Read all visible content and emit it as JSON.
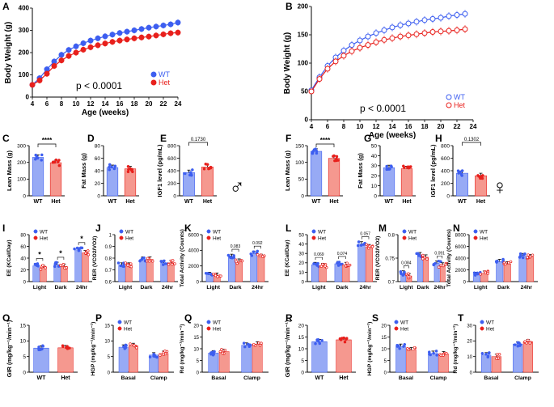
{
  "colors": {
    "wt_male": "#3d5ef0",
    "het_male": "#e8201c",
    "wt_female": "#3d5ef0",
    "het_female": "#e8201c",
    "bar_wt": "#97aaf5",
    "bar_het": "#f5988f"
  },
  "chart_data": [
    {
      "panel": "A",
      "type": "line",
      "ylabel": "Body Weight (g)",
      "xlabel": "Age (weeks)",
      "xlim": [
        4,
        24
      ],
      "ylim": [
        0,
        400
      ],
      "xticks": [
        4,
        6,
        8,
        10,
        12,
        14,
        16,
        18,
        20,
        22,
        24
      ],
      "yticks": [
        0,
        100,
        200,
        300,
        400
      ],
      "filled": true,
      "pvalue": "p < 0.0001",
      "legend": [
        "WT",
        "Het"
      ],
      "legend_position": "bottom-right",
      "series": [
        {
          "name": "WT",
          "x": [
            4,
            5,
            6,
            7,
            8,
            9,
            10,
            11,
            12,
            13,
            14,
            15,
            16,
            17,
            18,
            19,
            20,
            21,
            22,
            23,
            24
          ],
          "values": [
            55,
            85,
            125,
            160,
            190,
            212,
            228,
            242,
            254,
            264,
            273,
            281,
            288,
            294,
            300,
            306,
            312,
            317,
            322,
            327,
            335
          ]
        },
        {
          "name": "Het",
          "x": [
            4,
            5,
            6,
            7,
            8,
            9,
            10,
            11,
            12,
            13,
            14,
            15,
            16,
            17,
            18,
            19,
            20,
            21,
            22,
            23,
            24
          ],
          "values": [
            55,
            75,
            105,
            140,
            165,
            185,
            200,
            213,
            224,
            233,
            241,
            248,
            254,
            259,
            264,
            268,
            272,
            277,
            282,
            287,
            290
          ]
        }
      ]
    },
    {
      "panel": "B",
      "type": "line",
      "ylabel": "Body Weight (g)",
      "xlabel": "Age (weeks)",
      "xlim": [
        4,
        24
      ],
      "ylim": [
        0,
        200
      ],
      "xticks": [
        4,
        6,
        8,
        10,
        12,
        14,
        16,
        18,
        20,
        22,
        24
      ],
      "yticks": [
        0,
        50,
        100,
        150,
        200
      ],
      "filled": false,
      "pvalue": "p < 0.0001",
      "legend": [
        "WT",
        "Het"
      ],
      "legend_position": "bottom-right",
      "series": [
        {
          "name": "WT",
          "x": [
            4,
            5,
            6,
            7,
            8,
            9,
            10,
            11,
            12,
            13,
            14,
            15,
            16,
            17,
            18,
            19,
            20,
            21,
            22,
            23
          ],
          "values": [
            52,
            75,
            95,
            110,
            122,
            132,
            140,
            147,
            153,
            158,
            163,
            167,
            170,
            173,
            176,
            178,
            180,
            183,
            185,
            187
          ]
        },
        {
          "name": "Het",
          "x": [
            4,
            5,
            6,
            7,
            8,
            9,
            10,
            11,
            12,
            13,
            14,
            15,
            16,
            17,
            18,
            19,
            20,
            21,
            22,
            23
          ],
          "values": [
            50,
            72,
            90,
            103,
            113,
            121,
            127,
            132,
            137,
            141,
            144,
            147,
            149,
            151,
            153,
            155,
            156,
            157,
            158,
            160
          ]
        }
      ]
    },
    {
      "panel": "C",
      "type": "bar",
      "ylabel": "Lean Mass (g)",
      "ylim": [
        0,
        300
      ],
      "yticks": [
        0,
        100,
        200,
        300
      ],
      "categories": [
        "WT",
        "Het"
      ],
      "values": [
        230,
        198
      ],
      "annotation": "****"
    },
    {
      "panel": "D",
      "type": "bar",
      "ylabel": "Fat Mass (g)",
      "ylim": [
        0,
        80
      ],
      "yticks": [
        0,
        20,
        40,
        60,
        80
      ],
      "categories": [
        "WT",
        "Het"
      ],
      "values": [
        45,
        43
      ]
    },
    {
      "panel": "E",
      "type": "bar",
      "ylabel": "IGF1 level (pg/mL)",
      "ylim": [
        0,
        800
      ],
      "yticks": [
        0,
        200,
        400,
        600,
        800
      ],
      "categories": [
        "WT",
        "Het"
      ],
      "values": [
        370,
        460
      ],
      "annotation": "0.1730"
    },
    {
      "panel": "F",
      "type": "bar",
      "ylabel": "Lean Mass (g)",
      "ylim": [
        0,
        150
      ],
      "yticks": [
        0,
        50,
        100,
        150
      ],
      "categories": [
        "WT",
        "Het"
      ],
      "values": [
        133,
        112
      ],
      "annotation": "****"
    },
    {
      "panel": "G",
      "type": "bar",
      "ylabel": "Fat Mass (g)",
      "ylim": [
        0,
        50
      ],
      "yticks": [
        0,
        10,
        20,
        30,
        40,
        50
      ],
      "categories": [
        "WT",
        "Het"
      ],
      "values": [
        28,
        27
      ]
    },
    {
      "panel": "H",
      "type": "bar",
      "ylabel": "IGF1 level (pg/mL)",
      "ylim": [
        0,
        800
      ],
      "yticks": [
        0,
        200,
        400,
        600,
        800
      ],
      "categories": [
        "WT",
        "Het"
      ],
      "values": [
        360,
        320
      ],
      "annotation": "0.1302"
    },
    {
      "panel": "I",
      "type": "bar",
      "ylabel": "EE (KCal/Day)",
      "ylim": [
        0,
        80
      ],
      "yticks": [
        0,
        20,
        40,
        60,
        80
      ],
      "categories": [
        "Light",
        "Dark",
        "24hr"
      ],
      "legend": [
        "WT",
        "Het"
      ],
      "series": [
        {
          "name": "WT",
          "values": [
            27,
            29,
            54
          ]
        },
        {
          "name": "Het",
          "values": [
            24,
            26,
            49
          ]
        }
      ],
      "annotations": [
        "*",
        "*",
        "*"
      ]
    },
    {
      "panel": "J",
      "type": "bar",
      "ylabel": "RER (VCO2/VO2)",
      "ylim": [
        0.6,
        1.0
      ],
      "yticks": [
        0.6,
        0.7,
        0.8,
        0.9,
        1.0
      ],
      "categories": [
        "Light",
        "Dark",
        "24hr"
      ],
      "legend": [
        "WT",
        "Het"
      ],
      "series": [
        {
          "name": "WT",
          "values": [
            0.74,
            0.79,
            0.76
          ]
        },
        {
          "name": "Het",
          "values": [
            0.74,
            0.79,
            0.76
          ]
        }
      ]
    },
    {
      "panel": "K",
      "type": "bar",
      "ylabel": "Total Activity (Counts)",
      "ylim": [
        0,
        6000
      ],
      "yticks": [
        0,
        2000,
        4000,
        6000
      ],
      "categories": [
        "Light",
        "Dark",
        "24hr"
      ],
      "legend": [
        "WT",
        "Het"
      ],
      "series": [
        {
          "name": "WT",
          "values": [
            900,
            3200,
            3600
          ]
        },
        {
          "name": "Het",
          "values": [
            800,
            2600,
            3200
          ]
        }
      ],
      "annotations": [
        "",
        "0.083",
        "0.092"
      ]
    },
    {
      "panel": "L",
      "type": "bar",
      "ylabel": "EE (KCal/Day)",
      "ylim": [
        0,
        50
      ],
      "yticks": [
        0,
        10,
        20,
        30,
        40,
        50
      ],
      "categories": [
        "Light",
        "Dark",
        "24hr"
      ],
      "legend": [
        "WT",
        "Het"
      ],
      "series": [
        {
          "name": "WT",
          "values": [
            18,
            19,
            40
          ]
        },
        {
          "name": "Het",
          "values": [
            17,
            18,
            37
          ]
        }
      ],
      "annotations": [
        "0.069",
        "0.074",
        "0.057"
      ]
    },
    {
      "panel": "M",
      "type": "bar",
      "ylabel": "RER (VCO2/VO2)",
      "ylim": [
        0.7,
        0.8
      ],
      "yticks": [
        0.7,
        0.75,
        0.8
      ],
      "categories": [
        "Light",
        "Dark",
        "24hr"
      ],
      "legend": [
        "WT",
        "Het"
      ],
      "series": [
        {
          "name": "WT",
          "values": [
            0.718,
            0.757,
            0.739
          ]
        },
        {
          "name": "Het",
          "values": [
            0.712,
            0.752,
            0.735
          ]
        }
      ],
      "annotations": [
        "0.084",
        "",
        "0.091"
      ]
    },
    {
      "panel": "N",
      "type": "bar",
      "ylabel": "Total Activity (Counts)",
      "ylim": [
        0,
        8000
      ],
      "yticks": [
        0,
        2000,
        4000,
        6000,
        8000
      ],
      "categories": [
        "Light",
        "Dark",
        "24hr"
      ],
      "legend": [
        "WT",
        "Het"
      ],
      "series": [
        {
          "name": "WT",
          "values": [
            1200,
            3400,
            4400
          ]
        },
        {
          "name": "Het",
          "values": [
            1400,
            3000,
            4200
          ]
        }
      ]
    },
    {
      "panel": "O",
      "type": "bar",
      "ylabel": "GIR (mg/kg⁻¹/min⁻¹)",
      "ylim": [
        0,
        15
      ],
      "yticks": [
        0,
        5,
        10,
        15
      ],
      "categories": [
        "WT",
        "Het"
      ],
      "values": [
        7.7,
        7.8
      ]
    },
    {
      "panel": "P",
      "type": "bar",
      "ylabel": "HGP (mg/kg⁻¹/min⁻¹)",
      "ylim": [
        0,
        15
      ],
      "yticks": [
        0,
        5,
        10,
        15
      ],
      "categories": [
        "Basal",
        "Clamp"
      ],
      "legend": [
        "WT",
        "Het"
      ],
      "series": [
        {
          "name": "WT",
          "values": [
            8,
            5.5
          ]
        },
        {
          "name": "Het",
          "values": [
            8.5,
            6
          ]
        }
      ]
    },
    {
      "panel": "Q",
      "type": "bar",
      "ylabel": "Rd (mg/kg⁻¹/min⁻¹)",
      "ylim": [
        0,
        20
      ],
      "yticks": [
        0,
        5,
        10,
        15,
        20
      ],
      "categories": [
        "Basal",
        "Clamp"
      ],
      "legend": [
        "WT",
        "Het"
      ],
      "series": [
        {
          "name": "WT",
          "values": [
            8.2,
            11.5
          ]
        },
        {
          "name": "Het",
          "values": [
            8.8,
            12
          ]
        }
      ]
    },
    {
      "panel": "R",
      "type": "bar",
      "ylabel": "GIR (mg/kg⁻¹/min⁻¹)",
      "ylim": [
        0,
        20
      ],
      "yticks": [
        0,
        5,
        10,
        15,
        20
      ],
      "categories": [
        "WT",
        "Het"
      ],
      "values": [
        13,
        13.8
      ]
    },
    {
      "panel": "S",
      "type": "bar",
      "ylabel": "HGP (mg/kg⁻¹/min⁻¹)",
      "ylim": [
        0,
        20
      ],
      "yticks": [
        0,
        5,
        10,
        15,
        20
      ],
      "categories": [
        "Basal",
        "Clamp"
      ],
      "legend": [
        "WT",
        "Het"
      ],
      "series": [
        {
          "name": "WT",
          "values": [
            11,
            8
          ]
        },
        {
          "name": "Het",
          "values": [
            9.5,
            7.8
          ]
        }
      ]
    },
    {
      "panel": "T",
      "type": "bar",
      "ylabel": "Rd (mg/kg⁻¹/min⁻¹)",
      "ylim": [
        0,
        30
      ],
      "yticks": [
        0,
        10,
        20,
        30
      ],
      "categories": [
        "Basal",
        "Clamp"
      ],
      "legend": [
        "WT",
        "Het"
      ],
      "series": [
        {
          "name": "WT",
          "values": [
            11,
            18
          ]
        },
        {
          "name": "Het",
          "values": [
            10,
            19.5
          ]
        }
      ]
    }
  ],
  "symbols": {
    "male": "♂",
    "female": "♀"
  }
}
